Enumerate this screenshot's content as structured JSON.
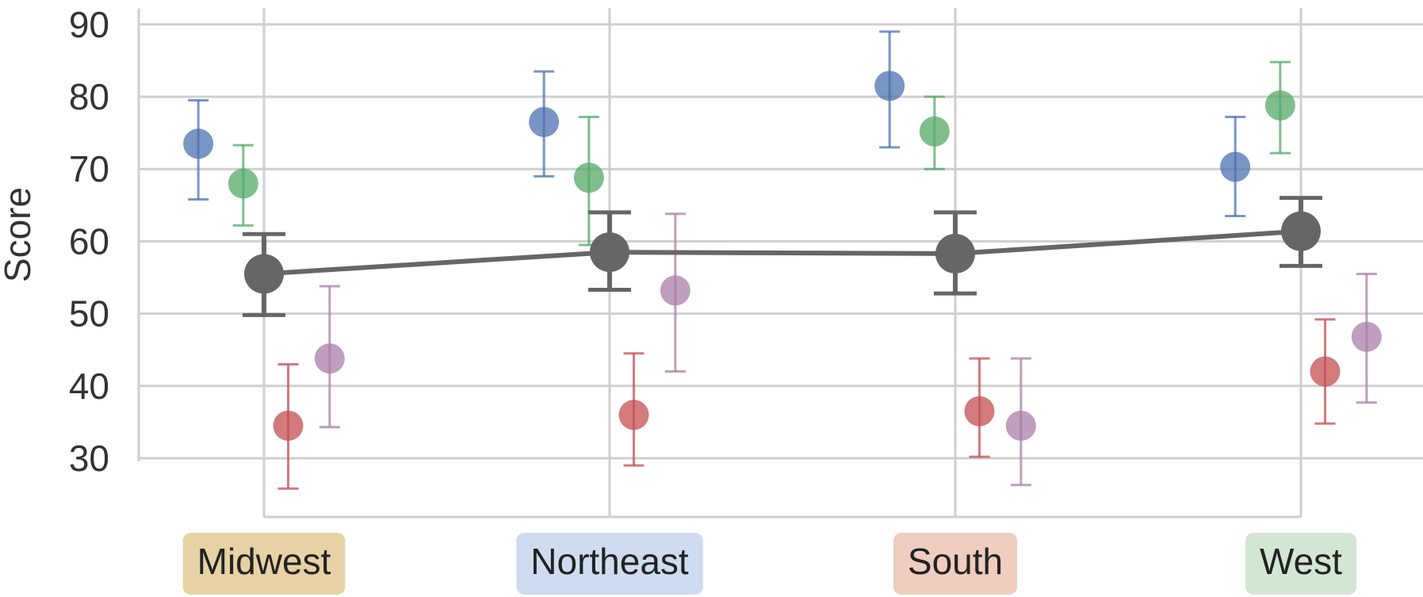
{
  "chart_data": {
    "type": "scatter",
    "title": "",
    "xlabel": "",
    "ylabel": "Score",
    "ylim": [
      28,
      94
    ],
    "yticks": [
      "30",
      "40",
      "50",
      "60",
      "70",
      "80",
      "90"
    ],
    "grid": true,
    "categories": [
      "Midwest",
      "Northeast",
      "South",
      "West"
    ],
    "category_colors": [
      "#e6d2a4",
      "#cfdcef",
      "#efcdbf",
      "#d3e6d3"
    ],
    "subgroups": [
      {
        "color": "#4c72b0",
        "offset": -0.19,
        "points": [
          {
            "y": 73.5,
            "lo": 65.8,
            "hi": 79.5
          },
          {
            "y": 76.5,
            "lo": 69.0,
            "hi": 83.5
          },
          {
            "y": 81.5,
            "lo": 73.0,
            "hi": 89.0
          },
          {
            "y": 70.3,
            "lo": 63.5,
            "hi": 77.2
          }
        ]
      },
      {
        "color": "#55a868",
        "offset": -0.06,
        "points": [
          {
            "y": 68.0,
            "lo": 62.2,
            "hi": 73.3
          },
          {
            "y": 68.8,
            "lo": 59.5,
            "hi": 77.2
          },
          {
            "y": 75.2,
            "lo": 70.0,
            "hi": 80.0
          },
          {
            "y": 78.8,
            "lo": 72.2,
            "hi": 84.8
          }
        ]
      },
      {
        "color": "#c44e52",
        "offset": 0.07,
        "points": [
          {
            "y": 34.5,
            "lo": 25.8,
            "hi": 43.0
          },
          {
            "y": 36.0,
            "lo": 29.0,
            "hi": 44.5
          },
          {
            "y": 36.5,
            "lo": 30.2,
            "hi": 43.8
          },
          {
            "y": 42.0,
            "lo": 34.8,
            "hi": 49.2
          }
        ]
      },
      {
        "color": "#a97ea8",
        "offset": 0.19,
        "points": [
          {
            "y": 43.8,
            "lo": 34.3,
            "hi": 53.8
          },
          {
            "y": 53.2,
            "lo": 42.0,
            "hi": 63.8
          },
          {
            "y": 34.5,
            "lo": 26.3,
            "hi": 43.8
          },
          {
            "y": 46.8,
            "lo": 37.7,
            "hi": 55.5
          }
        ]
      }
    ],
    "overall": {
      "color": "#666666",
      "points": [
        {
          "y": 55.5,
          "lo": 49.8,
          "hi": 61.0
        },
        {
          "y": 58.5,
          "lo": 53.3,
          "hi": 64.0
        },
        {
          "y": 58.3,
          "lo": 52.8,
          "hi": 64.0
        },
        {
          "y": 61.4,
          "lo": 56.6,
          "hi": 66.0
        }
      ]
    }
  }
}
